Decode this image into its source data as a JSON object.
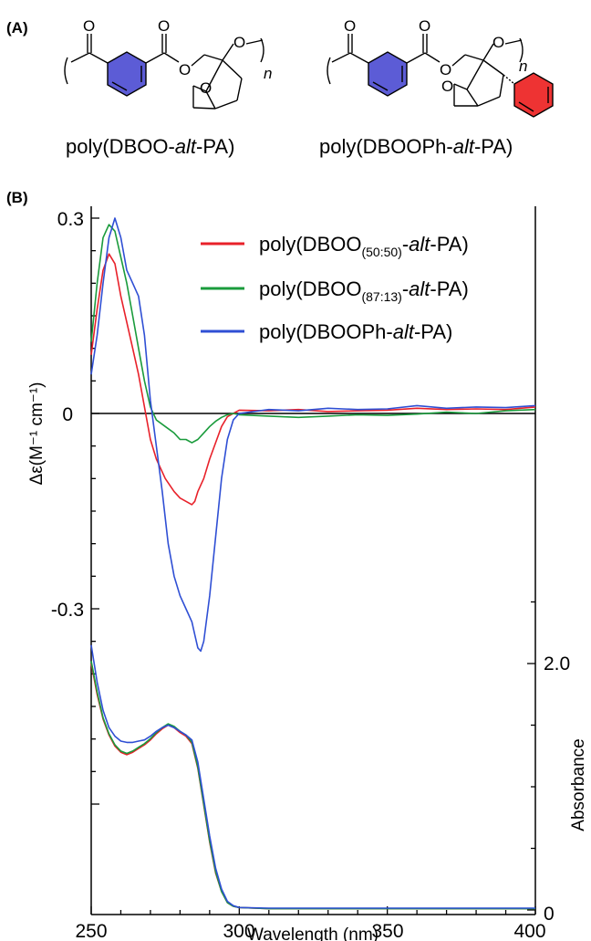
{
  "panels": {
    "a_label": "(A)",
    "b_label": "(B)"
  },
  "structures": {
    "left": {
      "prefix": "poly(DBOO-",
      "italic": "alt",
      "suffix": "-PA)",
      "n": "n",
      "atoms": [
        "O",
        "O",
        "O",
        "O",
        "O"
      ]
    },
    "right": {
      "prefix": "poly(DBOOPh-",
      "italic": "alt",
      "suffix": "-PA)",
      "n": "n",
      "atoms": [
        "O",
        "O",
        "O",
        "O",
        "O"
      ]
    },
    "colors": {
      "benzene": "#5c5cd6",
      "phenyl": "#ee3333"
    }
  },
  "chart_data": {
    "type": "line",
    "xlabel": "Wavelength (nm)",
    "ylabel_left": "Δε(M⁻¹ cm⁻¹)",
    "ylabel_right": "Absorbance",
    "xlim": [
      250,
      400
    ],
    "x_ticks": [
      "250",
      "300",
      "350",
      "400"
    ],
    "ylim_left_cd": [
      -0.6,
      0.3
    ],
    "y_ticks_left": [
      "0.3",
      "0",
      "-0.3"
    ],
    "ylim_right_abs": [
      0,
      3.0
    ],
    "y_ticks_right": [
      "2.0",
      "0"
    ],
    "legend": [
      {
        "prefix": "poly(DBOO",
        "sub": "(50:50)",
        "dash": "-",
        "italic": "alt",
        "suffix": "-PA)",
        "color": "#e8212a"
      },
      {
        "prefix": "poly(DBOO",
        "sub": "(87:13)",
        "dash": "-",
        "italic": "alt",
        "suffix": "-PA)",
        "color": "#1a9b3c"
      },
      {
        "prefix": "poly(DBOOPh-",
        "sub": "",
        "dash": "",
        "italic": "alt",
        "suffix": "-PA)",
        "color": "#2f4fd4"
      }
    ],
    "cd_series": [
      {
        "name": "poly(DBOO(50:50)-alt-PA)",
        "color": "#e8212a",
        "x": [
          250,
          252,
          254,
          256,
          258,
          260,
          262,
          264,
          266,
          268,
          270,
          272,
          275,
          278,
          280,
          282,
          284,
          285,
          286,
          288,
          290,
          292,
          294,
          296,
          298,
          300,
          310,
          320,
          330,
          340,
          350,
          360,
          370,
          380,
          390,
          400
        ],
        "y": [
          0.09,
          0.16,
          0.22,
          0.245,
          0.23,
          0.18,
          0.14,
          0.1,
          0.06,
          0.01,
          -0.04,
          -0.07,
          -0.1,
          -0.12,
          -0.13,
          -0.135,
          -0.14,
          -0.135,
          -0.12,
          -0.1,
          -0.07,
          -0.045,
          -0.02,
          -0.005,
          0.0,
          0.005,
          0.004,
          0.006,
          0.003,
          0.004,
          0.005,
          0.008,
          0.006,
          0.007,
          0.006,
          0.01
        ]
      },
      {
        "name": "poly(DBOO(87:13)-alt-PA)",
        "color": "#1a9b3c",
        "x": [
          250,
          252,
          254,
          256,
          258,
          260,
          262,
          264,
          266,
          268,
          270,
          272,
          275,
          278,
          280,
          282,
          284,
          286,
          288,
          290,
          292,
          294,
          296,
          298,
          300,
          310,
          320,
          330,
          340,
          350,
          360,
          370,
          380,
          390,
          400
        ],
        "y": [
          0.11,
          0.2,
          0.27,
          0.29,
          0.28,
          0.24,
          0.2,
          0.15,
          0.1,
          0.05,
          0.01,
          -0.01,
          -0.02,
          -0.03,
          -0.04,
          -0.04,
          -0.045,
          -0.04,
          -0.03,
          -0.02,
          -0.012,
          -0.006,
          -0.002,
          0.0,
          -0.002,
          -0.004,
          -0.006,
          -0.004,
          -0.002,
          -0.003,
          -0.001,
          0.002,
          0.0,
          0.004,
          0.006
        ]
      },
      {
        "name": "poly(DBOOPh-alt-PA)",
        "color": "#2f4fd4",
        "x": [
          250,
          252,
          254,
          256,
          258,
          260,
          262,
          264,
          266,
          268,
          270,
          272,
          274,
          276,
          278,
          280,
          282,
          284,
          285,
          286,
          287,
          288,
          290,
          292,
          294,
          296,
          298,
          300,
          310,
          320,
          330,
          340,
          350,
          360,
          370,
          380,
          390,
          400
        ],
        "y": [
          0.06,
          0.12,
          0.2,
          0.27,
          0.3,
          0.27,
          0.22,
          0.2,
          0.18,
          0.12,
          0.02,
          -0.05,
          -0.12,
          -0.2,
          -0.25,
          -0.28,
          -0.3,
          -0.32,
          -0.34,
          -0.36,
          -0.365,
          -0.35,
          -0.28,
          -0.19,
          -0.1,
          -0.04,
          -0.01,
          0.0,
          0.006,
          0.004,
          0.008,
          0.006,
          0.007,
          0.012,
          0.008,
          0.01,
          0.009,
          0.012
        ]
      }
    ],
    "abs_series": [
      {
        "name": "poly(DBOO(50:50)-alt-PA)",
        "color": "#e8212a",
        "x": [
          250,
          252,
          254,
          256,
          258,
          260,
          262,
          264,
          266,
          268,
          270,
          272,
          274,
          276,
          278,
          280,
          282,
          284,
          286,
          288,
          290,
          292,
          294,
          296,
          298,
          300,
          310,
          330,
          350,
          370,
          400
        ],
        "y": [
          2.0,
          1.75,
          1.55,
          1.42,
          1.33,
          1.28,
          1.26,
          1.28,
          1.31,
          1.34,
          1.38,
          1.43,
          1.47,
          1.5,
          1.48,
          1.44,
          1.41,
          1.35,
          1.15,
          0.85,
          0.55,
          0.3,
          0.15,
          0.06,
          0.03,
          0.02,
          0.01,
          0.01,
          0.01,
          0.01,
          0.01
        ]
      },
      {
        "name": "poly(DBOO(87:13)-alt-PA)",
        "color": "#1a9b3c",
        "x": [
          250,
          252,
          254,
          256,
          258,
          260,
          262,
          264,
          266,
          268,
          270,
          272,
          274,
          276,
          278,
          280,
          282,
          284,
          286,
          288,
          290,
          292,
          294,
          296,
          298,
          300,
          310,
          330,
          350,
          370,
          400
        ],
        "y": [
          2.02,
          1.77,
          1.56,
          1.43,
          1.34,
          1.29,
          1.27,
          1.29,
          1.32,
          1.35,
          1.39,
          1.44,
          1.48,
          1.51,
          1.49,
          1.45,
          1.42,
          1.36,
          1.16,
          0.86,
          0.56,
          0.31,
          0.15,
          0.06,
          0.03,
          0.02,
          0.01,
          0.01,
          0.01,
          0.01,
          0.01
        ]
      },
      {
        "name": "poly(DBOOPh-alt-PA)",
        "color": "#2f4fd4",
        "x": [
          250,
          252,
          254,
          256,
          258,
          260,
          262,
          264,
          266,
          268,
          270,
          272,
          274,
          276,
          278,
          280,
          282,
          284,
          286,
          288,
          290,
          292,
          294,
          296,
          298,
          300,
          310,
          330,
          350,
          370,
          400
        ],
        "y": [
          2.15,
          1.85,
          1.62,
          1.48,
          1.41,
          1.37,
          1.36,
          1.36,
          1.37,
          1.38,
          1.41,
          1.45,
          1.48,
          1.5,
          1.48,
          1.45,
          1.42,
          1.38,
          1.2,
          0.9,
          0.6,
          0.34,
          0.17,
          0.07,
          0.035,
          0.02,
          0.015,
          0.015,
          0.015,
          0.015,
          0.015
        ]
      }
    ]
  }
}
